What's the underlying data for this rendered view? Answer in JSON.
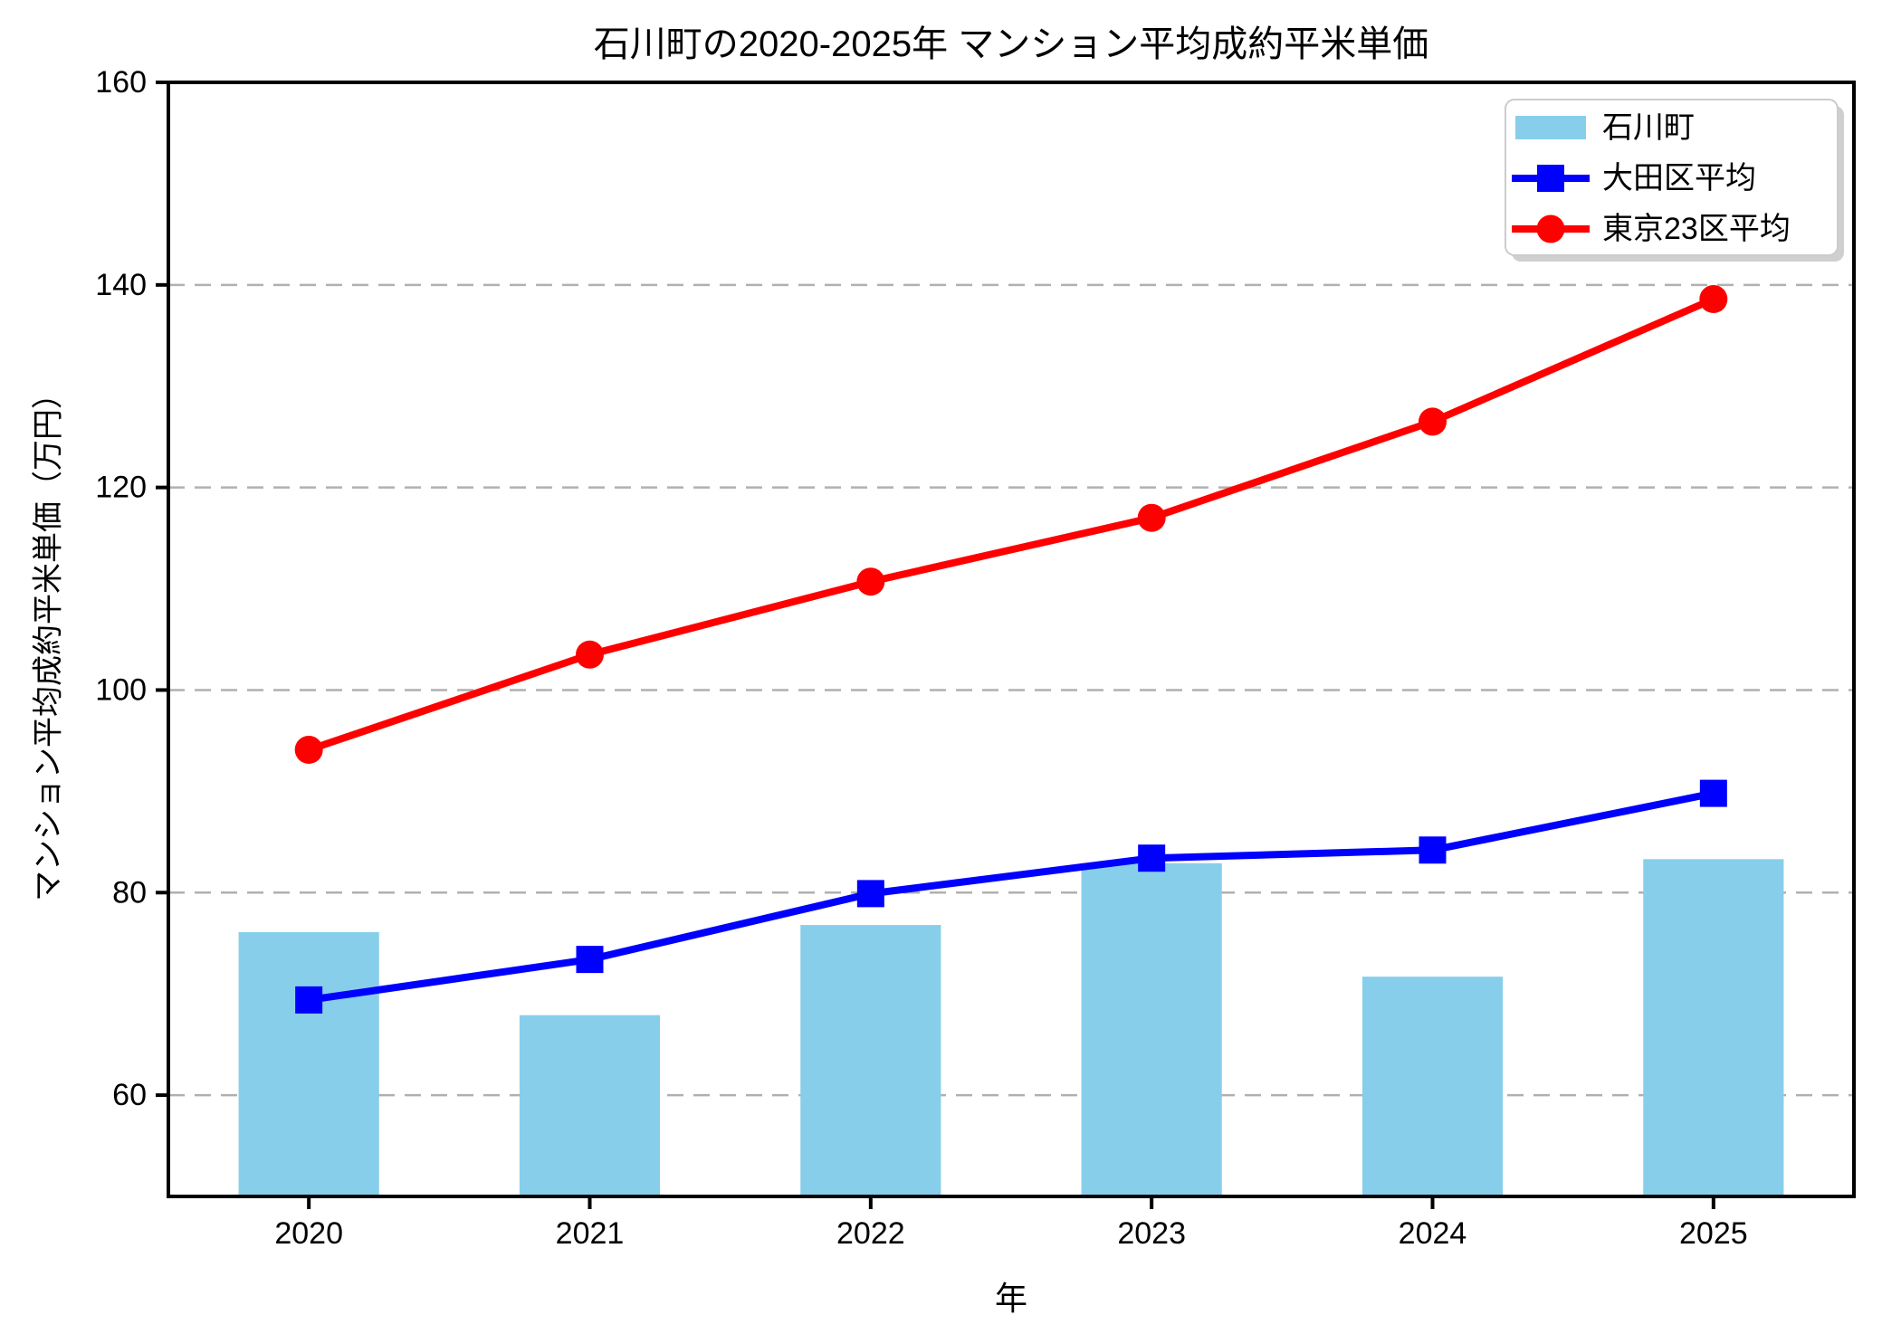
{
  "chart_data": {
    "type": "bar+line",
    "title": "石川町の2020-2025年 マンション平均成約平米単価",
    "xlabel": "年",
    "ylabel": "マンション平均成約平米単価（万円）",
    "categories": [
      "2020",
      "2021",
      "2022",
      "2023",
      "2024",
      "2025"
    ],
    "series": [
      {
        "name": "石川町",
        "type": "bar",
        "marker": "none",
        "color": "#87CEEB",
        "values": [
          76.1,
          67.9,
          76.8,
          82.9,
          71.7,
          83.3
        ]
      },
      {
        "name": "大田区平均",
        "type": "line",
        "marker": "square",
        "color": "#0000FF",
        "values": [
          69.4,
          73.4,
          79.9,
          83.4,
          84.2,
          89.8
        ]
      },
      {
        "name": "東京23区平均",
        "type": "line",
        "marker": "circle",
        "color": "#FF0000",
        "values": [
          94.1,
          103.5,
          110.7,
          117.0,
          126.5,
          138.6
        ]
      }
    ],
    "ylim": [
      50,
      160
    ],
    "yticks": [
      60,
      80,
      100,
      120,
      140,
      160
    ],
    "grid": true,
    "grid_style": "dashed",
    "grid_color": "#b0b0b0",
    "axis_color": "#000000",
    "background": "#FFFFFF",
    "legend_position": "upper right",
    "legend_border_color": "#cccccc",
    "legend_shadow_color": "#cfcfcf"
  }
}
